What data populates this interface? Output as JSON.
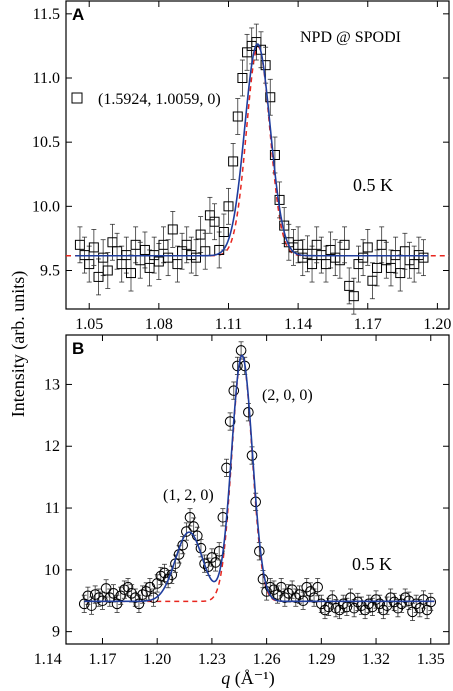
{
  "figure": {
    "ylabel": "Intensity (arb. units)",
    "xlabel_symbol": "q",
    "xlabel_unit": " (Å⁻¹)"
  },
  "chart_data": [
    {
      "panel": "A",
      "type": "scatter",
      "title": "NPD @ SPODI",
      "temperature": "0.5 K",
      "xlim": [
        1.04,
        1.205
      ],
      "ylim": [
        9.2,
        11.6
      ],
      "x_ticks": [
        "1.05",
        "1.08",
        "1.11",
        "1.14",
        "1.17",
        "1.20"
      ],
      "y_ticks": [
        "9.5",
        "10.0",
        "10.5",
        "11.0",
        "11.5"
      ],
      "grid": false,
      "legend": {
        "placement": "left",
        "marker": "open-square",
        "label": "(1.5924, 1.0059, 0)"
      },
      "series": [
        {
          "name": "(1.5924, 1.0059, 0)",
          "marker": "square",
          "x": [
            1.046,
            1.048,
            1.05,
            1.052,
            1.054,
            1.056,
            1.058,
            1.06,
            1.062,
            1.064,
            1.066,
            1.068,
            1.07,
            1.072,
            1.074,
            1.076,
            1.078,
            1.08,
            1.082,
            1.084,
            1.086,
            1.088,
            1.09,
            1.092,
            1.094,
            1.096,
            1.098,
            1.1,
            1.102,
            1.104,
            1.106,
            1.108,
            1.11,
            1.112,
            1.114,
            1.116,
            1.118,
            1.12,
            1.122,
            1.124,
            1.126,
            1.128,
            1.13,
            1.132,
            1.134,
            1.136,
            1.138,
            1.14,
            1.142,
            1.144,
            1.146,
            1.148,
            1.15,
            1.152,
            1.154,
            1.156,
            1.158,
            1.16,
            1.162,
            1.164,
            1.166,
            1.168,
            1.17,
            1.172,
            1.174,
            1.176,
            1.178,
            1.18,
            1.182,
            1.184,
            1.186,
            1.188,
            1.19,
            1.192,
            1.194
          ],
          "y": [
            9.7,
            9.62,
            9.55,
            9.68,
            9.45,
            9.6,
            9.5,
            9.72,
            9.65,
            9.55,
            9.62,
            9.48,
            9.7,
            9.58,
            9.66,
            9.52,
            9.62,
            9.57,
            9.7,
            9.6,
            9.82,
            9.55,
            9.65,
            9.7,
            9.62,
            9.6,
            9.78,
            9.65,
            9.93,
            9.88,
            9.66,
            9.8,
            10.0,
            10.35,
            10.7,
            11.0,
            11.2,
            11.25,
            11.28,
            11.22,
            11.1,
            10.85,
            10.4,
            10.05,
            9.85,
            9.72,
            9.68,
            9.7,
            9.6,
            9.63,
            9.55,
            9.7,
            9.62,
            9.55,
            9.66,
            9.6,
            9.58,
            9.7,
            9.38,
            9.3,
            9.55,
            9.6,
            9.68,
            9.42,
            9.52,
            9.7,
            9.58,
            9.52,
            9.62,
            9.48,
            9.65,
            9.58,
            9.55,
            9.62,
            9.6
          ],
          "error": 0.14
        },
        {
          "name": "",
          "type": "line",
          "style": "solid",
          "color": "#1f3d9e",
          "model": "gaussian",
          "baseline": 9.615,
          "amplitude": 1.65,
          "center": 1.1225,
          "sigma": 0.0055,
          "x_range": [
            1.044,
            1.196
          ]
        },
        {
          "name": "",
          "type": "line",
          "style": "dashed",
          "color": "#e8261e",
          "model": "gaussian",
          "baseline": 9.615,
          "amplitude": 1.63,
          "center": 1.1228,
          "sigma": 0.005,
          "x_range": [
            1.04,
            1.205
          ]
        }
      ]
    },
    {
      "panel": "B",
      "type": "scatter",
      "temperature": "0.5 K",
      "xlim": [
        1.15,
        1.36
      ],
      "ylim": [
        8.8,
        13.8
      ],
      "x_ticks": [
        "1.14",
        "1.17",
        "1.20",
        "1.23",
        "1.26",
        "1.29",
        "1.32",
        "1.35"
      ],
      "y_ticks": [
        "9",
        "10",
        "11",
        "12",
        "13"
      ],
      "grid": false,
      "annotations": [
        "(2, 0, 0)",
        "(1, 2, 0)"
      ],
      "series": [
        {
          "name": "",
          "marker": "circle",
          "x": [
            1.16,
            1.162,
            1.164,
            1.166,
            1.168,
            1.17,
            1.172,
            1.174,
            1.176,
            1.178,
            1.18,
            1.182,
            1.184,
            1.186,
            1.188,
            1.19,
            1.192,
            1.194,
            1.196,
            1.198,
            1.2,
            1.202,
            1.204,
            1.206,
            1.208,
            1.21,
            1.212,
            1.214,
            1.216,
            1.218,
            1.22,
            1.222,
            1.224,
            1.226,
            1.228,
            1.23,
            1.232,
            1.234,
            1.236,
            1.238,
            1.24,
            1.242,
            1.244,
            1.246,
            1.248,
            1.25,
            1.252,
            1.254,
            1.256,
            1.258,
            1.26,
            1.262,
            1.264,
            1.266,
            1.268,
            1.27,
            1.272,
            1.274,
            1.276,
            1.278,
            1.28,
            1.282,
            1.284,
            1.286,
            1.288,
            1.29,
            1.292,
            1.294,
            1.296,
            1.298,
            1.3,
            1.302,
            1.304,
            1.306,
            1.308,
            1.31,
            1.312,
            1.314,
            1.316,
            1.318,
            1.32,
            1.322,
            1.324,
            1.326,
            1.328,
            1.33,
            1.332,
            1.334,
            1.336,
            1.338,
            1.34,
            1.342,
            1.344,
            1.346,
            1.348,
            1.35
          ],
          "y": [
            9.45,
            9.58,
            9.42,
            9.6,
            9.55,
            9.5,
            9.7,
            9.55,
            9.62,
            9.45,
            9.58,
            9.68,
            9.72,
            9.62,
            9.55,
            9.45,
            9.6,
            9.65,
            9.72,
            9.55,
            9.78,
            9.9,
            9.95,
            9.85,
            9.92,
            10.1,
            10.25,
            10.4,
            10.62,
            10.85,
            10.7,
            10.55,
            10.35,
            10.1,
            10.05,
            10.2,
            10.12,
            10.3,
            10.85,
            11.65,
            12.4,
            12.9,
            13.3,
            13.55,
            13.3,
            12.55,
            11.85,
            11.1,
            10.3,
            9.85,
            9.65,
            9.72,
            9.68,
            9.6,
            9.72,
            9.55,
            9.62,
            9.68,
            9.55,
            9.6,
            9.5,
            9.72,
            9.65,
            9.55,
            9.72,
            9.45,
            9.35,
            9.4,
            9.52,
            9.38,
            9.35,
            9.45,
            9.4,
            9.55,
            9.38,
            9.48,
            9.42,
            9.35,
            9.45,
            9.4,
            9.52,
            9.45,
            9.35,
            9.42,
            9.55,
            9.48,
            9.38,
            9.45,
            9.55,
            9.5,
            9.32,
            9.45,
            9.38,
            9.52,
            9.35,
            9.48
          ],
          "error": 0.14
        },
        {
          "name": "",
          "type": "line",
          "style": "solid",
          "color": "#1f3d9e",
          "model": "two-gaussian",
          "baseline": 9.49,
          "peaks": [
            [
              1.2465,
              3.98,
              0.0057
            ],
            [
              1.2175,
              1.12,
              0.0075
            ]
          ],
          "x_range": [
            1.16,
            1.352
          ]
        },
        {
          "name": "",
          "type": "line",
          "style": "dashed",
          "color": "#e8261e",
          "model": "gaussian",
          "baseline": 9.49,
          "amplitude": 3.98,
          "center": 1.2465,
          "sigma": 0.0055,
          "x_range": [
            1.16,
            1.352
          ]
        }
      ]
    }
  ]
}
